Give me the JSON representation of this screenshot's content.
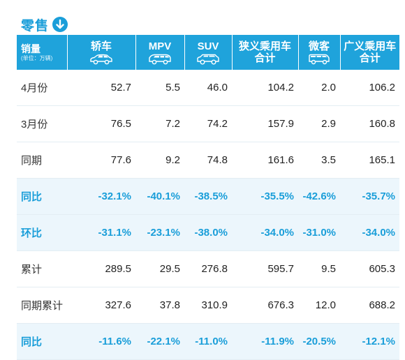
{
  "header": {
    "title": "零售"
  },
  "table": {
    "unit_header": {
      "label": "销量",
      "unit": "(单位：万辆)"
    },
    "columns": [
      {
        "line1": "轿车",
        "line2": "",
        "icon": "sedan-icon"
      },
      {
        "line1": "MPV",
        "line2": "",
        "icon": "mpv-icon"
      },
      {
        "line1": "SUV",
        "line2": "",
        "icon": "suv-icon"
      },
      {
        "line1": "狭义乘用车",
        "line2": "合计",
        "icon": ""
      },
      {
        "line1": "微客",
        "line2": "",
        "icon": "minivan-icon"
      },
      {
        "line1": "广义乘用车",
        "line2": "合计",
        "icon": ""
      }
    ],
    "rows": [
      {
        "label": "4月份",
        "highlight": false,
        "values": [
          "52.7",
          "5.5",
          "46.0",
          "104.2",
          "2.0",
          "106.2"
        ]
      },
      {
        "label": "3月份",
        "highlight": false,
        "values": [
          "76.5",
          "7.2",
          "74.2",
          "157.9",
          "2.9",
          "160.8"
        ]
      },
      {
        "label": "同期",
        "highlight": false,
        "values": [
          "77.6",
          "9.2",
          "74.8",
          "161.6",
          "3.5",
          "165.1"
        ]
      },
      {
        "label": "同比",
        "highlight": true,
        "values": [
          "-32.1%",
          "-40.1%",
          "-38.5%",
          "-35.5%",
          "-42.6%",
          "-35.7%"
        ]
      },
      {
        "label": "环比",
        "highlight": true,
        "values": [
          "-31.1%",
          "-23.1%",
          "-38.0%",
          "-34.0%",
          "-31.0%",
          "-34.0%"
        ]
      },
      {
        "label": "累计",
        "highlight": false,
        "values": [
          "289.5",
          "29.5",
          "276.8",
          "595.7",
          "9.5",
          "605.3"
        ]
      },
      {
        "label": "同期累计",
        "highlight": false,
        "values": [
          "327.6",
          "37.8",
          "310.9",
          "676.3",
          "12.0",
          "688.2"
        ]
      },
      {
        "label": "同比",
        "highlight": true,
        "values": [
          "-11.6%",
          "-22.1%",
          "-11.0%",
          "-11.9%",
          "-20.5%",
          "-12.1%"
        ]
      }
    ]
  }
}
